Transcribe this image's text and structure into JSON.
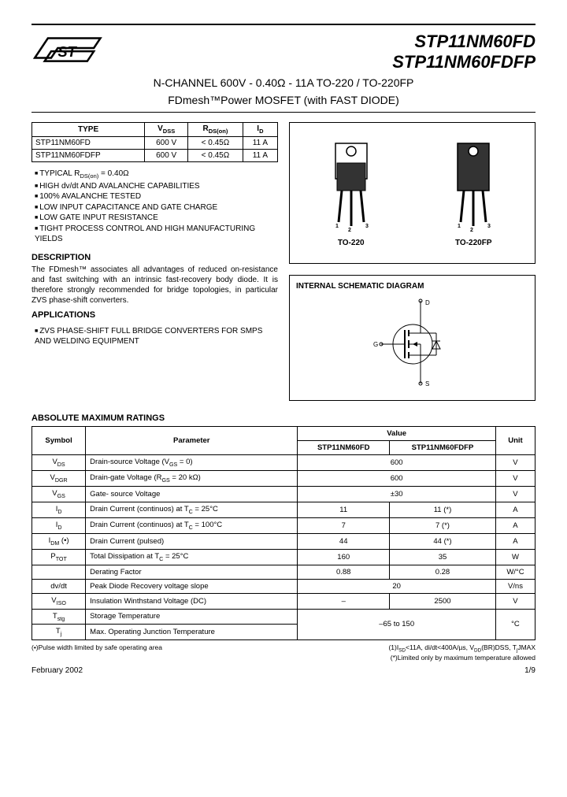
{
  "header": {
    "part1": "STP11NM60FD",
    "part2": "STP11NM60FDFP",
    "subtitle1": "N-CHANNEL 600V - 0.40Ω - 11A TO-220 / TO-220FP",
    "subtitle2": "FDmesh™Power MOSFET (with FAST DIODE)"
  },
  "spec_table": {
    "headers": [
      "TYPE",
      "VDSS",
      "RDS(on)",
      "ID"
    ],
    "rows": [
      [
        "STP11NM60FD",
        "600 V",
        "< 0.45Ω",
        "11 A"
      ],
      [
        "STP11NM60FDFP",
        "600 V",
        "< 0.45Ω",
        "11 A"
      ]
    ]
  },
  "features": [
    "TYPICAL RDS(on) = 0.40Ω",
    "HIGH dv/dt AND AVALANCHE CAPABILITIES",
    "100% AVALANCHE TESTED",
    "LOW INPUT CAPACITANCE AND GATE CHARGE",
    "LOW GATE INPUT RESISTANCE",
    "TIGHT PROCESS CONTROL AND HIGH MANUFACTURING YIELDS"
  ],
  "description": {
    "head": "DESCRIPTION",
    "text": "The FDmesh™ associates all advantages of reduced on-resistance and fast switching with an intrinsic fast-recovery body diode. It is therefore strongly recommended for bridge topologies, in particular ZVS phase-shift converters."
  },
  "applications": {
    "head": "APPLICATIONS",
    "item": "ZVS PHASE-SHIFT FULL BRIDGE CONVERTERS FOR SMPS AND WELDING EQUIPMENT"
  },
  "packages": {
    "p1": "TO-220",
    "p2": "TO-220FP"
  },
  "schematic": {
    "title": "INTERNAL SCHEMATIC DIAGRAM"
  },
  "ratings": {
    "head": "ABSOLUTE MAXIMUM RATINGS",
    "col_headers": [
      "Symbol",
      "Parameter",
      "Value",
      "Unit"
    ],
    "sub_headers": [
      "STP11NM60FD",
      "STP11NM60FDFP"
    ],
    "rows": [
      {
        "sym": "V<sub>DS</sub>",
        "param": "Drain-source Voltage (V<sub>GS</sub> = 0)",
        "v1": "600",
        "v2": "",
        "span": true,
        "unit": "V"
      },
      {
        "sym": "V<sub>DGR</sub>",
        "param": "Drain-gate Voltage (R<sub>GS</sub> = 20 kΩ)",
        "v1": "600",
        "v2": "",
        "span": true,
        "unit": "V"
      },
      {
        "sym": "V<sub>GS</sub>",
        "param": "Gate- source Voltage",
        "v1": "±30",
        "v2": "",
        "span": true,
        "unit": "V"
      },
      {
        "sym": "I<sub>D</sub>",
        "param": "Drain Current (continuos) at T<sub>C</sub> = 25°C",
        "v1": "11",
        "v2": "11 (*)",
        "span": false,
        "unit": "A"
      },
      {
        "sym": "I<sub>D</sub>",
        "param": "Drain Current (continuos) at T<sub>C</sub> = 100°C",
        "v1": "7",
        "v2": "7 (*)",
        "span": false,
        "unit": "A"
      },
      {
        "sym": "I<sub>DM</sub> (•)",
        "param": "Drain Current (pulsed)",
        "v1": "44",
        "v2": "44 (*)",
        "span": false,
        "unit": "A"
      },
      {
        "sym": "P<sub>TOT</sub>",
        "param": "Total Dissipation at T<sub>C</sub> = 25°C",
        "v1": "160",
        "v2": "35",
        "span": false,
        "unit": "W"
      },
      {
        "sym": "",
        "param": "Derating Factor",
        "v1": "0.88",
        "v2": "0.28",
        "span": false,
        "unit": "W/°C"
      },
      {
        "sym": "dv/dt",
        "param": "Peak Diode Recovery voltage slope",
        "v1": "20",
        "v2": "",
        "span": true,
        "unit": "V/ns"
      },
      {
        "sym": "V<sub>ISO</sub>",
        "param": "Insulation Winthstand Voltage (DC)",
        "v1": "–",
        "v2": "2500",
        "span": false,
        "unit": "V"
      },
      {
        "sym": "T<sub>stg</sub>",
        "param": "Storage Temperature",
        "v1": "–65 to 150",
        "v2": "",
        "span": true,
        "unit": "°C",
        "rowspan": 2
      },
      {
        "sym": "T<sub>j</sub>",
        "param": "Max. Operating Junction Temperature",
        "skip_val": true
      }
    ]
  },
  "footnotes": {
    "left": "(•)Pulse width limited by safe operating area",
    "right1": "(1)I<sub>SD</sub><11A, di/dt<400A/µs, V<sub>DD</sub><V<sub>(BR)DSS</sub>, T<sub>j</sub><T<sub>JMAX</sub>",
    "right2": "(*)Limited only by maximum temperature allowed"
  },
  "footer": {
    "date": "February 2002",
    "page": "1/9"
  },
  "colors": {
    "line": "#000000"
  }
}
